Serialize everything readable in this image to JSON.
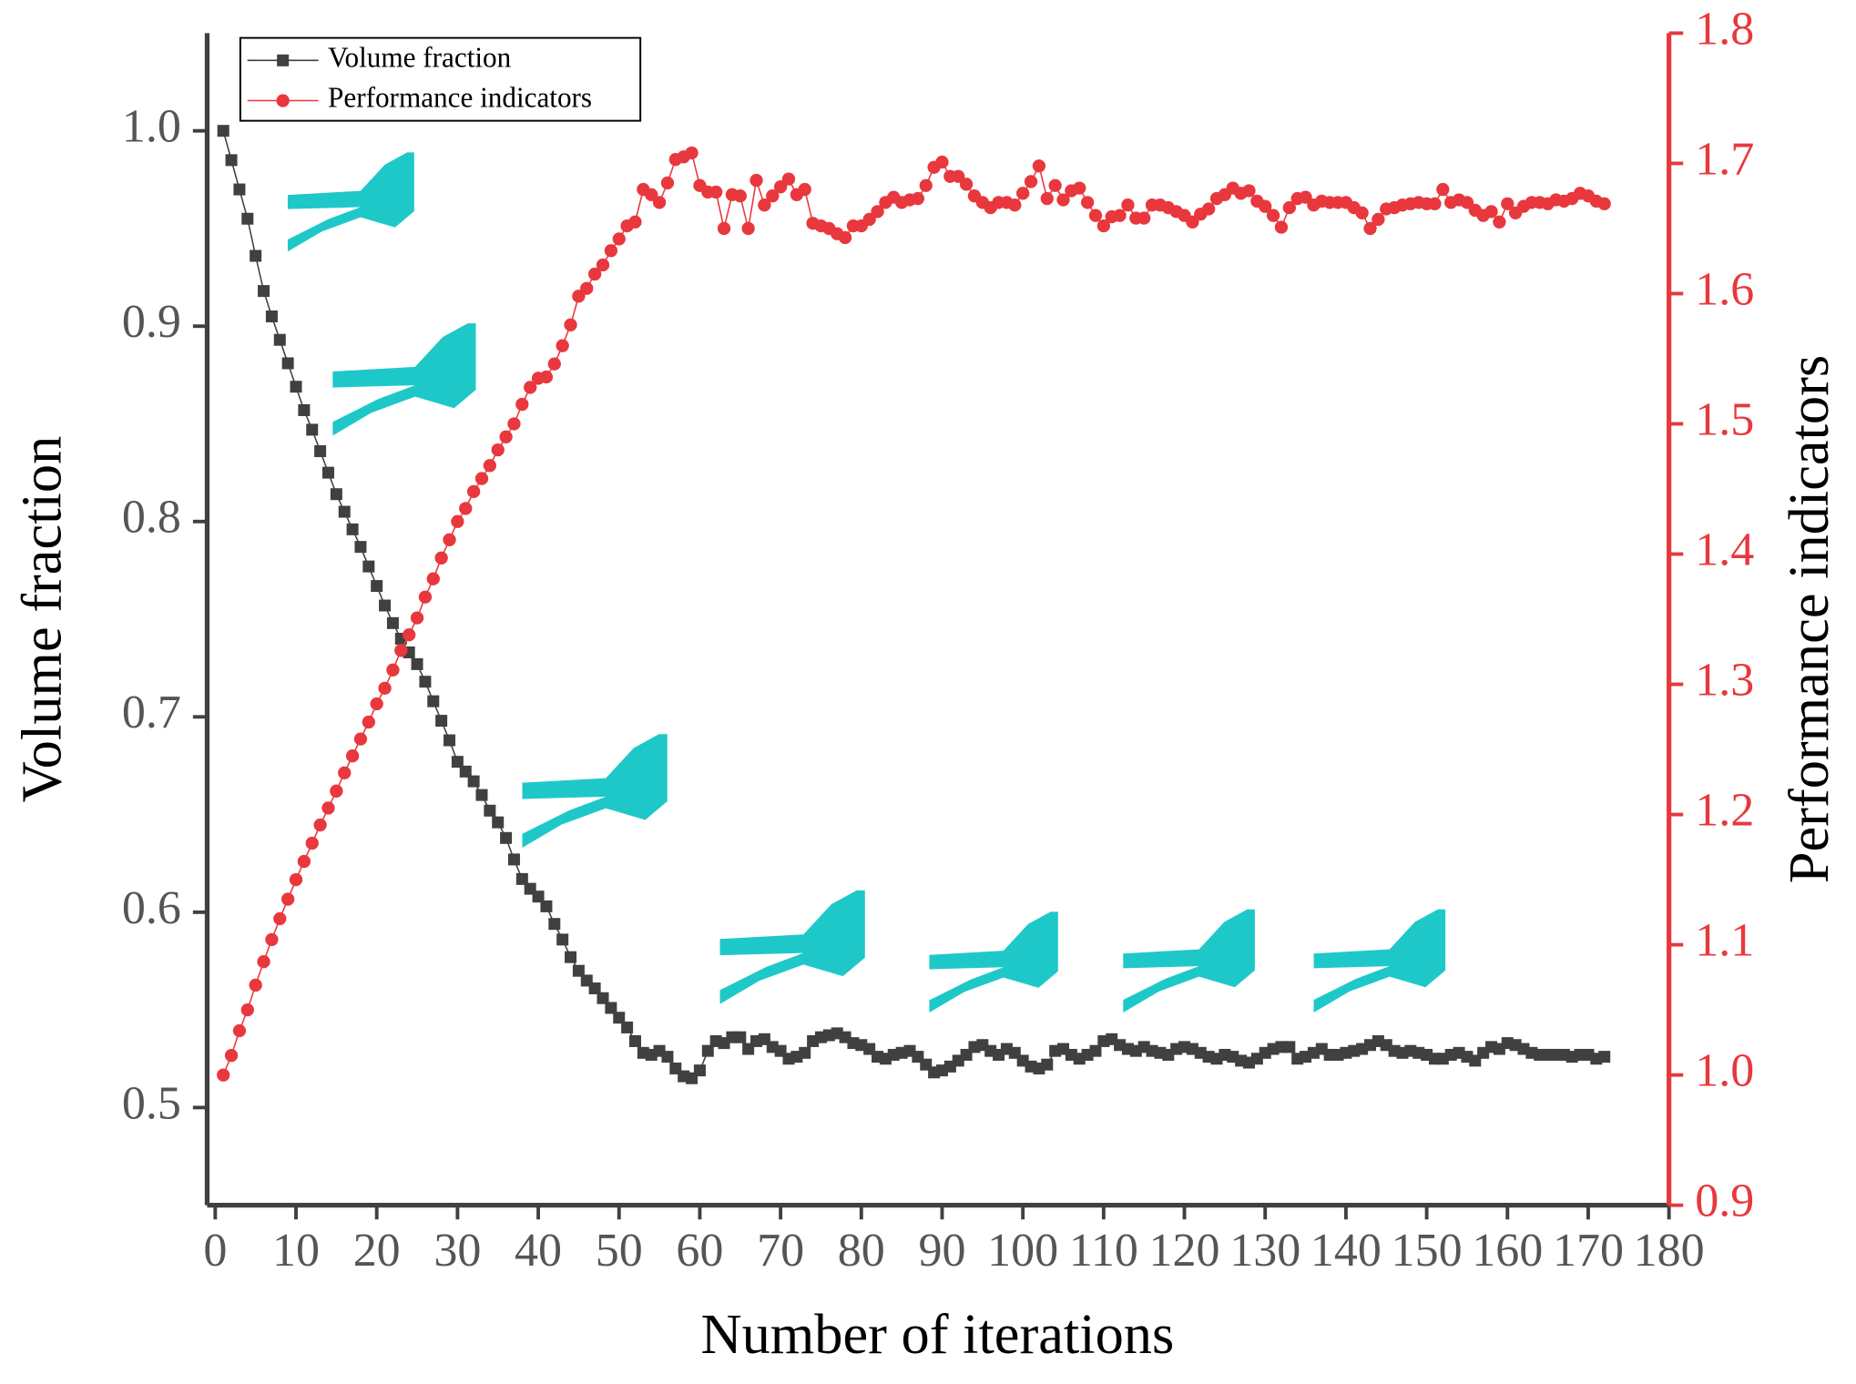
{
  "chart_data": {
    "type": "line",
    "x_label": "Number of iterations",
    "y_label": "Volume fraction",
    "y2_label": "Performance indicators",
    "xlim": [
      -1,
      180
    ],
    "xticks": [
      0,
      10,
      20,
      30,
      40,
      50,
      60,
      70,
      80,
      90,
      100,
      110,
      120,
      130,
      140,
      150,
      160,
      170,
      180
    ],
    "ylim": [
      0.45,
      1.05
    ],
    "yticks": [
      0.5,
      0.6,
      0.7,
      0.8,
      0.9,
      {
        "value": 1.0,
        "label": "1.0"
      }
    ],
    "y2lim": [
      0.9,
      1.8
    ],
    "y2ticks": [
      0.9,
      {
        "value": 1.0,
        "label": "1.0"
      },
      1.1,
      1.2,
      1.3,
      1.4,
      1.5,
      1.6,
      1.7,
      1.8
    ],
    "legend": "upper left",
    "x": [
      1,
      2,
      3,
      4,
      5,
      6,
      7,
      8,
      9,
      10,
      11,
      12,
      13,
      14,
      15,
      16,
      17,
      18,
      19,
      20,
      21,
      22,
      23,
      24,
      25,
      26,
      27,
      28,
      29,
      30,
      31,
      32,
      33,
      34,
      35,
      36,
      37,
      38,
      39,
      40,
      41,
      42,
      43,
      44,
      45,
      46,
      47,
      48,
      49,
      50,
      51,
      52,
      53,
      54,
      55,
      56,
      57,
      58,
      59,
      60,
      61,
      62,
      63,
      64,
      65,
      66,
      67,
      68,
      69,
      70,
      71,
      72,
      73,
      74,
      75,
      76,
      77,
      78,
      79,
      80,
      81,
      82,
      83,
      84,
      85,
      86,
      87,
      88,
      89,
      90,
      91,
      92,
      93,
      94,
      95,
      96,
      97,
      98,
      99,
      100,
      101,
      102,
      103,
      104,
      105,
      106,
      107,
      108,
      109,
      110,
      111,
      112,
      113,
      114,
      115,
      116,
      117,
      118,
      119,
      120,
      121,
      122,
      123,
      124,
      125,
      126,
      127,
      128,
      129,
      130,
      131,
      132,
      133,
      134,
      135,
      136,
      137,
      138,
      139,
      140,
      141,
      142,
      143,
      144,
      145,
      146,
      147,
      148,
      149,
      150,
      151,
      152,
      153,
      154,
      155,
      156,
      157,
      158,
      159,
      160,
      161,
      162,
      163,
      164,
      165,
      166,
      167,
      168,
      169,
      170,
      171,
      172
    ],
    "series": [
      {
        "name": "Volume fraction",
        "color": "#404040",
        "marker": "square",
        "axis": "y",
        "values": [
          1.0,
          0.985,
          0.97,
          0.955,
          0.936,
          0.918,
          0.905,
          0.893,
          0.881,
          0.869,
          0.857,
          0.847,
          0.836,
          0.825,
          0.814,
          0.805,
          0.796,
          0.787,
          0.777,
          0.767,
          0.757,
          0.748,
          0.74,
          0.733,
          0.727,
          0.718,
          0.708,
          0.698,
          0.688,
          0.677,
          0.672,
          0.667,
          0.66,
          0.652,
          0.646,
          0.638,
          0.627,
          0.617,
          0.612,
          0.608,
          0.603,
          0.594,
          0.586,
          0.577,
          0.57,
          0.565,
          0.561,
          0.556,
          0.551,
          0.546,
          0.541,
          0.534,
          0.528,
          0.527,
          0.529,
          0.526,
          0.52,
          0.516,
          0.515,
          0.519,
          0.529,
          0.534,
          0.533,
          0.536,
          0.536,
          0.53,
          0.534,
          0.535,
          0.531,
          0.529,
          0.525,
          0.526,
          0.528,
          0.534,
          0.536,
          0.537,
          0.538,
          0.536,
          0.533,
          0.532,
          0.53,
          0.526,
          0.525,
          0.527,
          0.528,
          0.529,
          0.526,
          0.522,
          0.518,
          0.519,
          0.521,
          0.524,
          0.527,
          0.531,
          0.532,
          0.529,
          0.527,
          0.53,
          0.528,
          0.524,
          0.521,
          0.52,
          0.522,
          0.529,
          0.53,
          0.527,
          0.525,
          0.527,
          0.529,
          0.534,
          0.535,
          0.532,
          0.53,
          0.529,
          0.531,
          0.529,
          0.528,
          0.527,
          0.53,
          0.531,
          0.53,
          0.528,
          0.526,
          0.525,
          0.527,
          0.526,
          0.524,
          0.523,
          0.525,
          0.528,
          0.53,
          0.531,
          0.531,
          0.525,
          0.526,
          0.528,
          0.53,
          0.527,
          0.527,
          0.528,
          0.529,
          0.53,
          0.532,
          0.534,
          0.532,
          0.529,
          0.528,
          0.529,
          0.528,
          0.527,
          0.525,
          0.525,
          0.527,
          0.528,
          0.526,
          0.524,
          0.528,
          0.531,
          0.53,
          0.533,
          0.532,
          0.53,
          0.528,
          0.527,
          0.527,
          0.527,
          0.527,
          0.526,
          0.527,
          0.527,
          0.525,
          0.526
        ]
      },
      {
        "name": "Performance indicators",
        "color": "#e8383d",
        "marker": "circle",
        "axis": "y2",
        "values": [
          1.0,
          1.015,
          1.034,
          1.05,
          1.069,
          1.087,
          1.104,
          1.12,
          1.135,
          1.15,
          1.164,
          1.178,
          1.192,
          1.205,
          1.218,
          1.232,
          1.245,
          1.258,
          1.271,
          1.285,
          1.297,
          1.311,
          1.326,
          1.338,
          1.351,
          1.367,
          1.381,
          1.397,
          1.411,
          1.425,
          1.435,
          1.448,
          1.458,
          1.468,
          1.48,
          1.49,
          1.5,
          1.515,
          1.528,
          1.535,
          1.536,
          1.546,
          1.56,
          1.576,
          1.598,
          1.604,
          1.615,
          1.622,
          1.633,
          1.642,
          1.652,
          1.655,
          1.68,
          1.676,
          1.67,
          1.685,
          1.703,
          1.705,
          1.708,
          1.683,
          1.678,
          1.678,
          1.65,
          1.676,
          1.675,
          1.65,
          1.687,
          1.668,
          1.675,
          1.682,
          1.688,
          1.676,
          1.68,
          1.654,
          1.652,
          1.65,
          1.646,
          1.643,
          1.652,
          1.652,
          1.657,
          1.663,
          1.67,
          1.674,
          1.67,
          1.672,
          1.673,
          1.683,
          1.697,
          1.701,
          1.69,
          1.69,
          1.684,
          1.675,
          1.67,
          1.666,
          1.67,
          1.67,
          1.668,
          1.677,
          1.686,
          1.698,
          1.673,
          1.683,
          1.672,
          1.679,
          1.681,
          1.67,
          1.66,
          1.652,
          1.659,
          1.66,
          1.668,
          1.658,
          1.658,
          1.668,
          1.668,
          1.666,
          1.663,
          1.66,
          1.655,
          1.661,
          1.665,
          1.673,
          1.676,
          1.681,
          1.677,
          1.679,
          1.671,
          1.667,
          1.66,
          1.651,
          1.666,
          1.673,
          1.674,
          1.668,
          1.671,
          1.67,
          1.67,
          1.67,
          1.666,
          1.662,
          1.65,
          1.657,
          1.665,
          1.666,
          1.668,
          1.669,
          1.67,
          1.669,
          1.669,
          1.68,
          1.67,
          1.672,
          1.67,
          1.664,
          1.66,
          1.663,
          1.655,
          1.669,
          1.662,
          1.667,
          1.67,
          1.67,
          1.669,
          1.672,
          1.671,
          1.673,
          1.677,
          1.675,
          1.671,
          1.669
        ]
      }
    ]
  }
}
